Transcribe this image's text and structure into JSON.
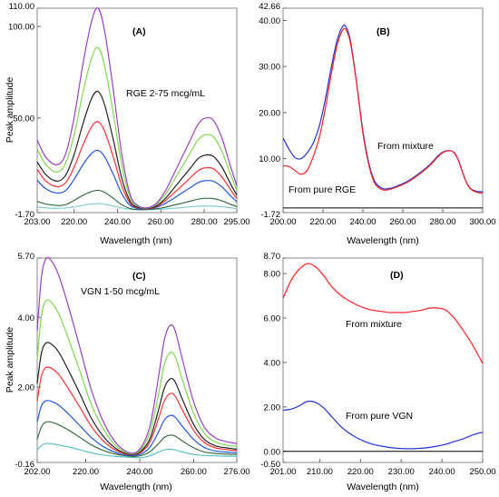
{
  "chart_data": [
    {
      "type": "line",
      "panel_label": "(A)",
      "annotation": "RGE 2-75 mcg/mL",
      "xlabel": "Wavelength (nm)",
      "ylabel": "Peak amplitude",
      "xlim": [
        203.0,
        295.0
      ],
      "ylim": [
        -1.7,
        110.0
      ],
      "x_ticks": [
        "203.00",
        "220.00",
        "240.00",
        "260.00",
        "280.00",
        "295.00"
      ],
      "y_ticks": [
        "-1.70",
        "50.00",
        "100.00",
        "110.00"
      ],
      "x": [
        203,
        207,
        212,
        216,
        220,
        224,
        228,
        231,
        234,
        238,
        242,
        246,
        250,
        254,
        258,
        262,
        266,
        270,
        274,
        277,
        280,
        284,
        288,
        292,
        295
      ],
      "series": [
        {
          "color": "#80ced0",
          "values": [
            1.4,
            0.9,
            0.6,
            0.8,
            1.4,
            2.3,
            3.0,
            3.2,
            2.9,
            1.9,
            0.8,
            0.1,
            -0.2,
            -0.1,
            0.1,
            0.3,
            0.7,
            1.1,
            1.5,
            1.8,
            1.9,
            1.9,
            1.5,
            0.9,
            0.5
          ]
        },
        {
          "color": "#3a6e46",
          "values": [
            4.5,
            3.0,
            2.2,
            2.6,
            5.0,
            7.7,
            9.8,
            10.5,
            9.4,
            6.2,
            2.6,
            0.5,
            -0.1,
            0.0,
            0.4,
            1.2,
            2.4,
            3.5,
            4.7,
            5.6,
            6.1,
            6.0,
            4.8,
            2.9,
            1.6
          ]
        },
        {
          "color": "#2255dd",
          "values": [
            16.0,
            11.3,
            9.0,
            10.3,
            16.4,
            24.3,
            30.6,
            32.3,
            29.0,
            19.4,
            8.6,
            2.1,
            0.4,
            0.3,
            1.2,
            3.3,
            6.2,
            9.2,
            12.3,
            14.6,
            15.7,
            15.5,
            12.5,
            7.6,
            4.2
          ]
        },
        {
          "color": "#ff3030",
          "values": [
            22.0,
            15.5,
            12.5,
            14.5,
            23.0,
            35.0,
            45.0,
            48.0,
            43.0,
            29.0,
            13.0,
            3.2,
            0.8,
            0.4,
            1.6,
            4.8,
            9.0,
            13.3,
            17.8,
            21.1,
            22.7,
            22.4,
            18.0,
            11.0,
            6.0
          ]
        },
        {
          "color": "#222222",
          "values": [
            26.0,
            19.0,
            15.5,
            18.5,
            30.0,
            46.5,
            60.5,
            64.5,
            57.5,
            38.5,
            17.0,
            4.2,
            1.0,
            0.6,
            2.0,
            6.0,
            11.6,
            17.4,
            23.2,
            27.6,
            29.6,
            29.2,
            23.5,
            14.3,
            7.8
          ]
        },
        {
          "color": "#7fd84e",
          "values": [
            33.0,
            24.5,
            20.5,
            25.0,
            40.5,
            63.5,
            82.5,
            88.5,
            79.0,
            53.0,
            24.0,
            6.0,
            1.5,
            0.8,
            2.8,
            8.2,
            15.8,
            23.8,
            31.8,
            37.8,
            40.6,
            40.0,
            32.2,
            19.6,
            10.6
          ]
        },
        {
          "color": "#9b3fc8",
          "values": [
            38.0,
            28.5,
            24.5,
            30.0,
            50.0,
            79.0,
            102.5,
            110.0,
            98.0,
            66.0,
            30.0,
            7.5,
            1.8,
            1.0,
            3.4,
            10.0,
            19.4,
            29.2,
            39.0,
            46.3,
            49.8,
            49.0,
            39.5,
            24.0,
            13.0
          ]
        }
      ]
    },
    {
      "type": "line",
      "panel_label": "(B)",
      "xlabel": "Wavelength (nm)",
      "xlim": [
        200.0,
        300.0
      ],
      "ylim": [
        -1.72,
        42.66
      ],
      "x_ticks": [
        "200.00",
        "220.00",
        "240.00",
        "260.00",
        "280.00",
        "300.00"
      ],
      "y_ticks": [
        "-1.72",
        "10.00",
        "20.00",
        "30.00",
        "40.00",
        "42.66"
      ],
      "annotations": [
        "From mixture",
        "From pure RGE"
      ],
      "x": [
        200,
        203,
        206,
        209,
        212,
        215,
        218,
        221,
        224,
        227,
        230,
        232,
        234,
        237,
        240,
        243,
        246,
        250,
        254,
        258,
        262,
        266,
        270,
        274,
        278,
        281,
        284,
        286,
        288,
        290,
        292,
        294,
        297,
        300
      ],
      "series": [
        {
          "color": "#2233dd",
          "values": [
            14.5,
            12.0,
            10.2,
            10.0,
            11.2,
            13.3,
            16.8,
            22.5,
            29.5,
            35.5,
            38.8,
            38.2,
            35.0,
            26.0,
            16.0,
            9.0,
            5.0,
            3.5,
            3.6,
            4.2,
            5.0,
            6.1,
            7.4,
            8.9,
            10.8,
            11.6,
            11.7,
            11.2,
            9.5,
            7.0,
            4.8,
            3.5,
            2.9,
            2.8
          ]
        },
        {
          "color": "#ff2020",
          "values": [
            8.4,
            8.3,
            7.4,
            6.6,
            7.4,
            10.3,
            14.3,
            20.5,
            28.0,
            34.5,
            38.0,
            37.6,
            34.5,
            25.8,
            15.5,
            8.6,
            4.6,
            3.2,
            3.4,
            4.0,
            4.8,
            5.9,
            7.2,
            8.7,
            10.6,
            11.5,
            11.7,
            11.1,
            9.4,
            6.9,
            4.7,
            3.4,
            2.7,
            2.5
          ]
        }
      ]
    },
    {
      "type": "line",
      "panel_label": "(C)",
      "annotation": "VGN 1-50 mcg/mL",
      "xlabel": "Wavelength (nm)",
      "ylabel": "Peak amplitude",
      "xlim": [
        202.0,
        276.0
      ],
      "ylim": [
        -0.16,
        5.7
      ],
      "x_ticks": [
        "202.00",
        "220.00",
        "240.00",
        "260.00",
        "276.00"
      ],
      "y_ticks": [
        "-0.16",
        "2.00",
        "4.00",
        "5.70"
      ],
      "x": [
        202,
        203.5,
        205,
        207,
        210,
        214,
        218,
        222,
        226,
        230,
        234,
        238,
        241,
        244,
        247,
        249,
        251,
        253,
        256,
        260,
        264,
        268,
        272,
        276
      ],
      "series": [
        {
          "color": "#5cbfc3",
          "values": [
            0.2,
            0.32,
            0.38,
            0.38,
            0.34,
            0.28,
            0.2,
            0.12,
            0.06,
            0.02,
            0.0,
            -0.02,
            -0.02,
            0.04,
            0.14,
            0.2,
            0.22,
            0.2,
            0.14,
            0.07,
            0.04,
            0.03,
            0.02,
            0.02
          ]
        },
        {
          "color": "#3a6e46",
          "values": [
            0.5,
            0.85,
            0.99,
            1.0,
            0.92,
            0.75,
            0.55,
            0.35,
            0.2,
            0.1,
            0.04,
            0.01,
            0.05,
            0.16,
            0.38,
            0.55,
            0.62,
            0.6,
            0.45,
            0.26,
            0.14,
            0.1,
            0.08,
            0.07
          ]
        },
        {
          "color": "#2255dd",
          "values": [
            1.0,
            1.45,
            1.6,
            1.6,
            1.48,
            1.2,
            0.88,
            0.56,
            0.32,
            0.16,
            0.06,
            0.04,
            0.1,
            0.3,
            0.72,
            1.04,
            1.18,
            1.15,
            0.86,
            0.5,
            0.27,
            0.17,
            0.14,
            0.12
          ]
        },
        {
          "color": "#ff3030",
          "values": [
            1.6,
            2.3,
            2.55,
            2.55,
            2.36,
            1.9,
            1.4,
            0.88,
            0.5,
            0.24,
            0.1,
            0.06,
            0.16,
            0.46,
            1.1,
            1.58,
            1.8,
            1.76,
            1.32,
            0.76,
            0.41,
            0.26,
            0.21,
            0.18
          ]
        },
        {
          "color": "#222222",
          "values": [
            2.1,
            2.95,
            3.25,
            3.25,
            3.0,
            2.42,
            1.78,
            1.12,
            0.64,
            0.31,
            0.12,
            0.07,
            0.2,
            0.56,
            1.35,
            1.94,
            2.22,
            2.17,
            1.62,
            0.93,
            0.5,
            0.32,
            0.26,
            0.22
          ]
        },
        {
          "color": "#7fd84e",
          "values": [
            2.8,
            4.0,
            4.45,
            4.45,
            4.1,
            3.3,
            2.42,
            1.52,
            0.87,
            0.42,
            0.16,
            0.09,
            0.26,
            0.75,
            1.8,
            2.6,
            2.97,
            2.9,
            2.17,
            1.25,
            0.67,
            0.43,
            0.34,
            0.3
          ]
        },
        {
          "color": "#9b3fc8",
          "values": [
            3.6,
            5.1,
            5.65,
            5.65,
            5.2,
            4.2,
            3.08,
            1.94,
            1.1,
            0.53,
            0.2,
            0.11,
            0.33,
            0.95,
            2.3,
            3.3,
            3.75,
            3.65,
            2.74,
            1.58,
            0.85,
            0.55,
            0.44,
            0.38
          ]
        }
      ]
    },
    {
      "type": "line",
      "panel_label": "(D)",
      "xlabel": "Wavelength (nm)",
      "xlim": [
        201.0,
        250.0
      ],
      "ylim": [
        -0.5,
        8.7
      ],
      "x_ticks": [
        "201.00",
        "210.00",
        "220.00",
        "230.00",
        "240.00",
        "250.00"
      ],
      "y_ticks": [
        "-0.50",
        "0.00",
        "2.00",
        "4.00",
        "6.00",
        "8.00",
        "8.70"
      ],
      "annotations": [
        "From mixture",
        "From pure VGN"
      ],
      "x": [
        201,
        203,
        205,
        207,
        209,
        211,
        213,
        215,
        217,
        219,
        221,
        223,
        225,
        227,
        229,
        231,
        233,
        235,
        237,
        239,
        241,
        243,
        245,
        247,
        249,
        250
      ],
      "series": [
        {
          "color": "#ff2020",
          "values": [
            6.9,
            7.7,
            8.2,
            8.45,
            8.3,
            7.9,
            7.4,
            7.05,
            6.8,
            6.6,
            6.45,
            6.35,
            6.3,
            6.25,
            6.25,
            6.25,
            6.3,
            6.35,
            6.45,
            6.45,
            6.35,
            6.0,
            5.5,
            4.95,
            4.3,
            3.95
          ]
        },
        {
          "color": "#2233dd",
          "values": [
            1.85,
            1.9,
            2.05,
            2.25,
            2.2,
            1.95,
            1.55,
            1.15,
            0.85,
            0.62,
            0.45,
            0.32,
            0.24,
            0.18,
            0.14,
            0.12,
            0.12,
            0.14,
            0.18,
            0.24,
            0.32,
            0.44,
            0.55,
            0.7,
            0.82,
            0.85
          ]
        }
      ]
    }
  ]
}
